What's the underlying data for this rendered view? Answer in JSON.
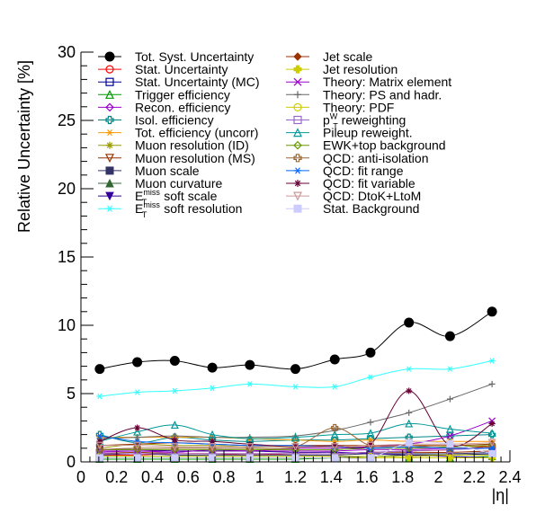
{
  "chart_data": {
    "type": "line",
    "title": "",
    "xlabel": "|η|",
    "ylabel": "Relative Uncertainty [%]",
    "xlim": [
      0,
      2.4
    ],
    "ylim": [
      0,
      30
    ],
    "x_ticks": [
      "0",
      "0.2",
      "0.4",
      "0.6",
      "0.8",
      "1",
      "1.2",
      "1.4",
      "1.6",
      "1.8",
      "2",
      "2.2",
      "2.4"
    ],
    "y_ticks": [
      "0",
      "5",
      "10",
      "15",
      "20",
      "25",
      "30"
    ],
    "x": [
      0.105,
      0.315,
      0.525,
      0.735,
      0.945,
      1.2,
      1.42,
      1.62,
      1.835,
      2.065,
      2.3
    ],
    "legend_position": "top",
    "series": [
      {
        "name": "Tot. Syst. Uncertainty",
        "label_main": "Tot. Syst. Uncertainty",
        "color": "#000000",
        "marker": "circle-filled",
        "values": [
          6.8,
          7.3,
          7.4,
          6.9,
          7.1,
          6.8,
          7.5,
          8.0,
          10.2,
          9.2,
          11.0
        ]
      },
      {
        "name": "Stat. Uncertainty",
        "label_main": "Stat. Uncertainty",
        "color": "#ff0000",
        "marker": "circle-open",
        "values": [
          0.5,
          0.5,
          0.6,
          0.6,
          0.5,
          0.6,
          0.6,
          0.7,
          0.8,
          0.9,
          1.2
        ]
      },
      {
        "name": "Stat. Uncertainty (MC)",
        "label_main": "Stat. Uncertainty (MC)",
        "color": "#000099",
        "marker": "square-open",
        "values": [
          0.3,
          0.3,
          0.3,
          0.3,
          0.3,
          0.3,
          0.3,
          0.4,
          0.4,
          0.5,
          0.6
        ]
      },
      {
        "name": "Trigger efficiency",
        "label_main": "Trigger efficiency",
        "color": "#009900",
        "marker": "triangle-open",
        "values": [
          0.2,
          0.2,
          0.2,
          0.2,
          0.2,
          0.2,
          0.3,
          0.3,
          0.3,
          0.3,
          0.4
        ]
      },
      {
        "name": "Recon. efficiency",
        "label_main": "Recon. efficiency",
        "color": "#9900cc",
        "marker": "diamond-open",
        "values": [
          0.8,
          0.8,
          0.8,
          0.8,
          0.8,
          0.8,
          0.8,
          0.9,
          0.9,
          1.0,
          1.0
        ]
      },
      {
        "name": "Isol. efficiency",
        "label_main": "Isol. efficiency",
        "color": "#008888",
        "marker": "cross-open",
        "values": [
          2.0,
          1.4,
          1.8,
          1.6,
          1.5,
          1.6,
          1.6,
          1.7,
          1.8,
          1.9,
          2.0
        ]
      },
      {
        "name": "Tot. efficiency (uncorr)",
        "label_main": "Tot. efficiency (uncorr)",
        "color": "#ff9900",
        "marker": "star",
        "values": [
          1.8,
          1.8,
          1.8,
          1.8,
          1.7,
          1.6,
          1.5,
          1.6,
          1.5,
          1.5,
          1.5
        ]
      },
      {
        "name": "Muon resolution (ID)",
        "label_main": "Muon resolution (ID)",
        "color": "#999900",
        "marker": "asterisk",
        "values": [
          1.0,
          1.3,
          1.2,
          1.2,
          1.1,
          1.1,
          1.1,
          1.1,
          1.2,
          1.2,
          1.3
        ]
      },
      {
        "name": "Muon resolution (MS)",
        "label_main": "Muon resolution (MS)",
        "color": "#993300",
        "marker": "triangle-down-open",
        "values": [
          0.6,
          0.7,
          0.6,
          0.6,
          0.6,
          0.6,
          0.6,
          0.7,
          0.7,
          0.7,
          0.8
        ]
      },
      {
        "name": "Muon scale",
        "label_main": "Muon scale",
        "color": "#333366",
        "marker": "square-filled",
        "values": [
          0.5,
          0.6,
          0.5,
          0.5,
          0.5,
          0.5,
          0.5,
          0.6,
          0.6,
          0.6,
          0.7
        ]
      },
      {
        "name": "Muon curvature",
        "label_main": "Muon curvature",
        "color": "#336633",
        "marker": "triangle-filled",
        "values": [
          0.4,
          0.4,
          0.4,
          0.4,
          0.4,
          0.4,
          0.4,
          0.4,
          0.5,
          0.5,
          0.5
        ]
      },
      {
        "name": "E_T^miss soft scale",
        "label_main": "E",
        "label_sub": "T",
        "label_sup": "miss",
        "label_rest": "soft scale",
        "color": "#330099",
        "marker": "triangle-down-filled",
        "values": [
          0.9,
          0.9,
          0.8,
          0.8,
          0.8,
          0.7,
          0.7,
          0.6,
          0.5,
          0.4,
          0.3
        ]
      },
      {
        "name": "E_T^miss soft resolution",
        "label_main": "E",
        "label_sub": "T",
        "label_sup": "miss",
        "label_rest": "soft resolution",
        "color": "#33ffff",
        "marker": "star",
        "values": [
          4.8,
          5.1,
          5.2,
          5.4,
          5.7,
          5.5,
          5.5,
          6.2,
          6.8,
          6.8,
          7.4
        ]
      },
      {
        "name": "Jet scale",
        "label_main": "Jet scale",
        "color": "#993300",
        "marker": "diamond-filled",
        "values": [
          1.2,
          1.3,
          1.4,
          1.3,
          1.2,
          1.2,
          1.2,
          1.2,
          1.2,
          1.2,
          1.3
        ]
      },
      {
        "name": "Jet resolution",
        "label_main": "Jet resolution",
        "color": "#cccc00",
        "marker": "cross-filled",
        "values": [
          0.3,
          0.3,
          0.3,
          0.3,
          0.3,
          0.3,
          0.3,
          0.3,
          0.3,
          0.3,
          0.3
        ]
      },
      {
        "name": "Theory: Matrix element",
        "label_main": "Theory: Matrix element",
        "color": "#9900cc",
        "marker": "x",
        "values": [
          0.7,
          0.8,
          0.7,
          0.9,
          0.8,
          1.0,
          1.0,
          1.1,
          1.3,
          1.9,
          3.0
        ]
      },
      {
        "name": "Theory: PS and hadr.",
        "label_main": "Theory: PS and hadr.",
        "color": "#666666",
        "marker": "plus",
        "values": [
          1.7,
          1.8,
          1.9,
          1.8,
          1.8,
          1.9,
          2.3,
          2.9,
          3.6,
          4.6,
          5.7
        ]
      },
      {
        "name": "Theory: PDF",
        "label_main": "Theory: PDF",
        "color": "#cccc00",
        "marker": "circle-open",
        "values": [
          0.4,
          0.4,
          0.4,
          0.4,
          0.4,
          0.4,
          0.4,
          0.4,
          0.4,
          0.5,
          0.5
        ]
      },
      {
        "name": "p_T^W reweighting",
        "label_main": "p",
        "label_sub": "T",
        "label_sup": "W",
        "label_rest": "reweighting",
        "color": "#9966cc",
        "marker": "square-open",
        "values": [
          0.6,
          0.6,
          0.6,
          0.6,
          0.6,
          0.6,
          0.6,
          0.7,
          0.8,
          0.9,
          1.0
        ]
      },
      {
        "name": "Pileup reweight.",
        "label_main": "Pileup reweight.",
        "color": "#009999",
        "marker": "triangle-open",
        "values": [
          1.5,
          2.2,
          2.7,
          2.0,
          1.7,
          1.8,
          2.0,
          2.1,
          2.8,
          2.4,
          2.1
        ]
      },
      {
        "name": "EWK+top background",
        "label_main": "EWK+top background",
        "color": "#669900",
        "marker": "diamond-open",
        "values": [
          0.9,
          0.9,
          0.9,
          0.9,
          0.9,
          0.9,
          0.9,
          1.0,
          1.0,
          1.1,
          1.2
        ]
      },
      {
        "name": "QCD: anti-isolation",
        "label_main": "QCD: anti-isolation",
        "color": "#996633",
        "marker": "cross-open",
        "values": [
          0.9,
          1.0,
          1.0,
          1.0,
          1.0,
          1.1,
          2.5,
          1.2,
          1.2,
          1.0,
          1.1
        ]
      },
      {
        "name": "QCD: fit range",
        "label_main": "QCD: fit range",
        "color": "#0066ff",
        "marker": "star",
        "values": [
          1.9,
          1.5,
          1.4,
          1.3,
          1.2,
          1.2,
          1.1,
          1.0,
          1.1,
          1.0,
          1.0
        ]
      },
      {
        "name": "QCD: fit variable",
        "label_main": "QCD: fit variable",
        "color": "#660033",
        "marker": "asterisk",
        "values": [
          1.5,
          2.5,
          1.6,
          1.5,
          1.3,
          1.1,
          1.2,
          1.3,
          5.2,
          1.2,
          2.8
        ]
      },
      {
        "name": "QCD: DtoK+LtoM",
        "label_main": "QCD: DtoK+LtoM",
        "color": "#cc9999",
        "marker": "triangle-down-open",
        "values": [
          1.2,
          1.2,
          1.1,
          1.1,
          1.1,
          1.1,
          1.1,
          1.2,
          1.3,
          1.3,
          1.4
        ]
      },
      {
        "name": "Stat. Background",
        "label_main": "Stat. Background",
        "color": "#ccccff",
        "marker": "square-filled",
        "values": [
          0.3,
          0.3,
          0.3,
          0.3,
          0.3,
          0.3,
          0.3,
          0.3,
          1.4,
          1.3,
          0.6
        ]
      }
    ]
  }
}
